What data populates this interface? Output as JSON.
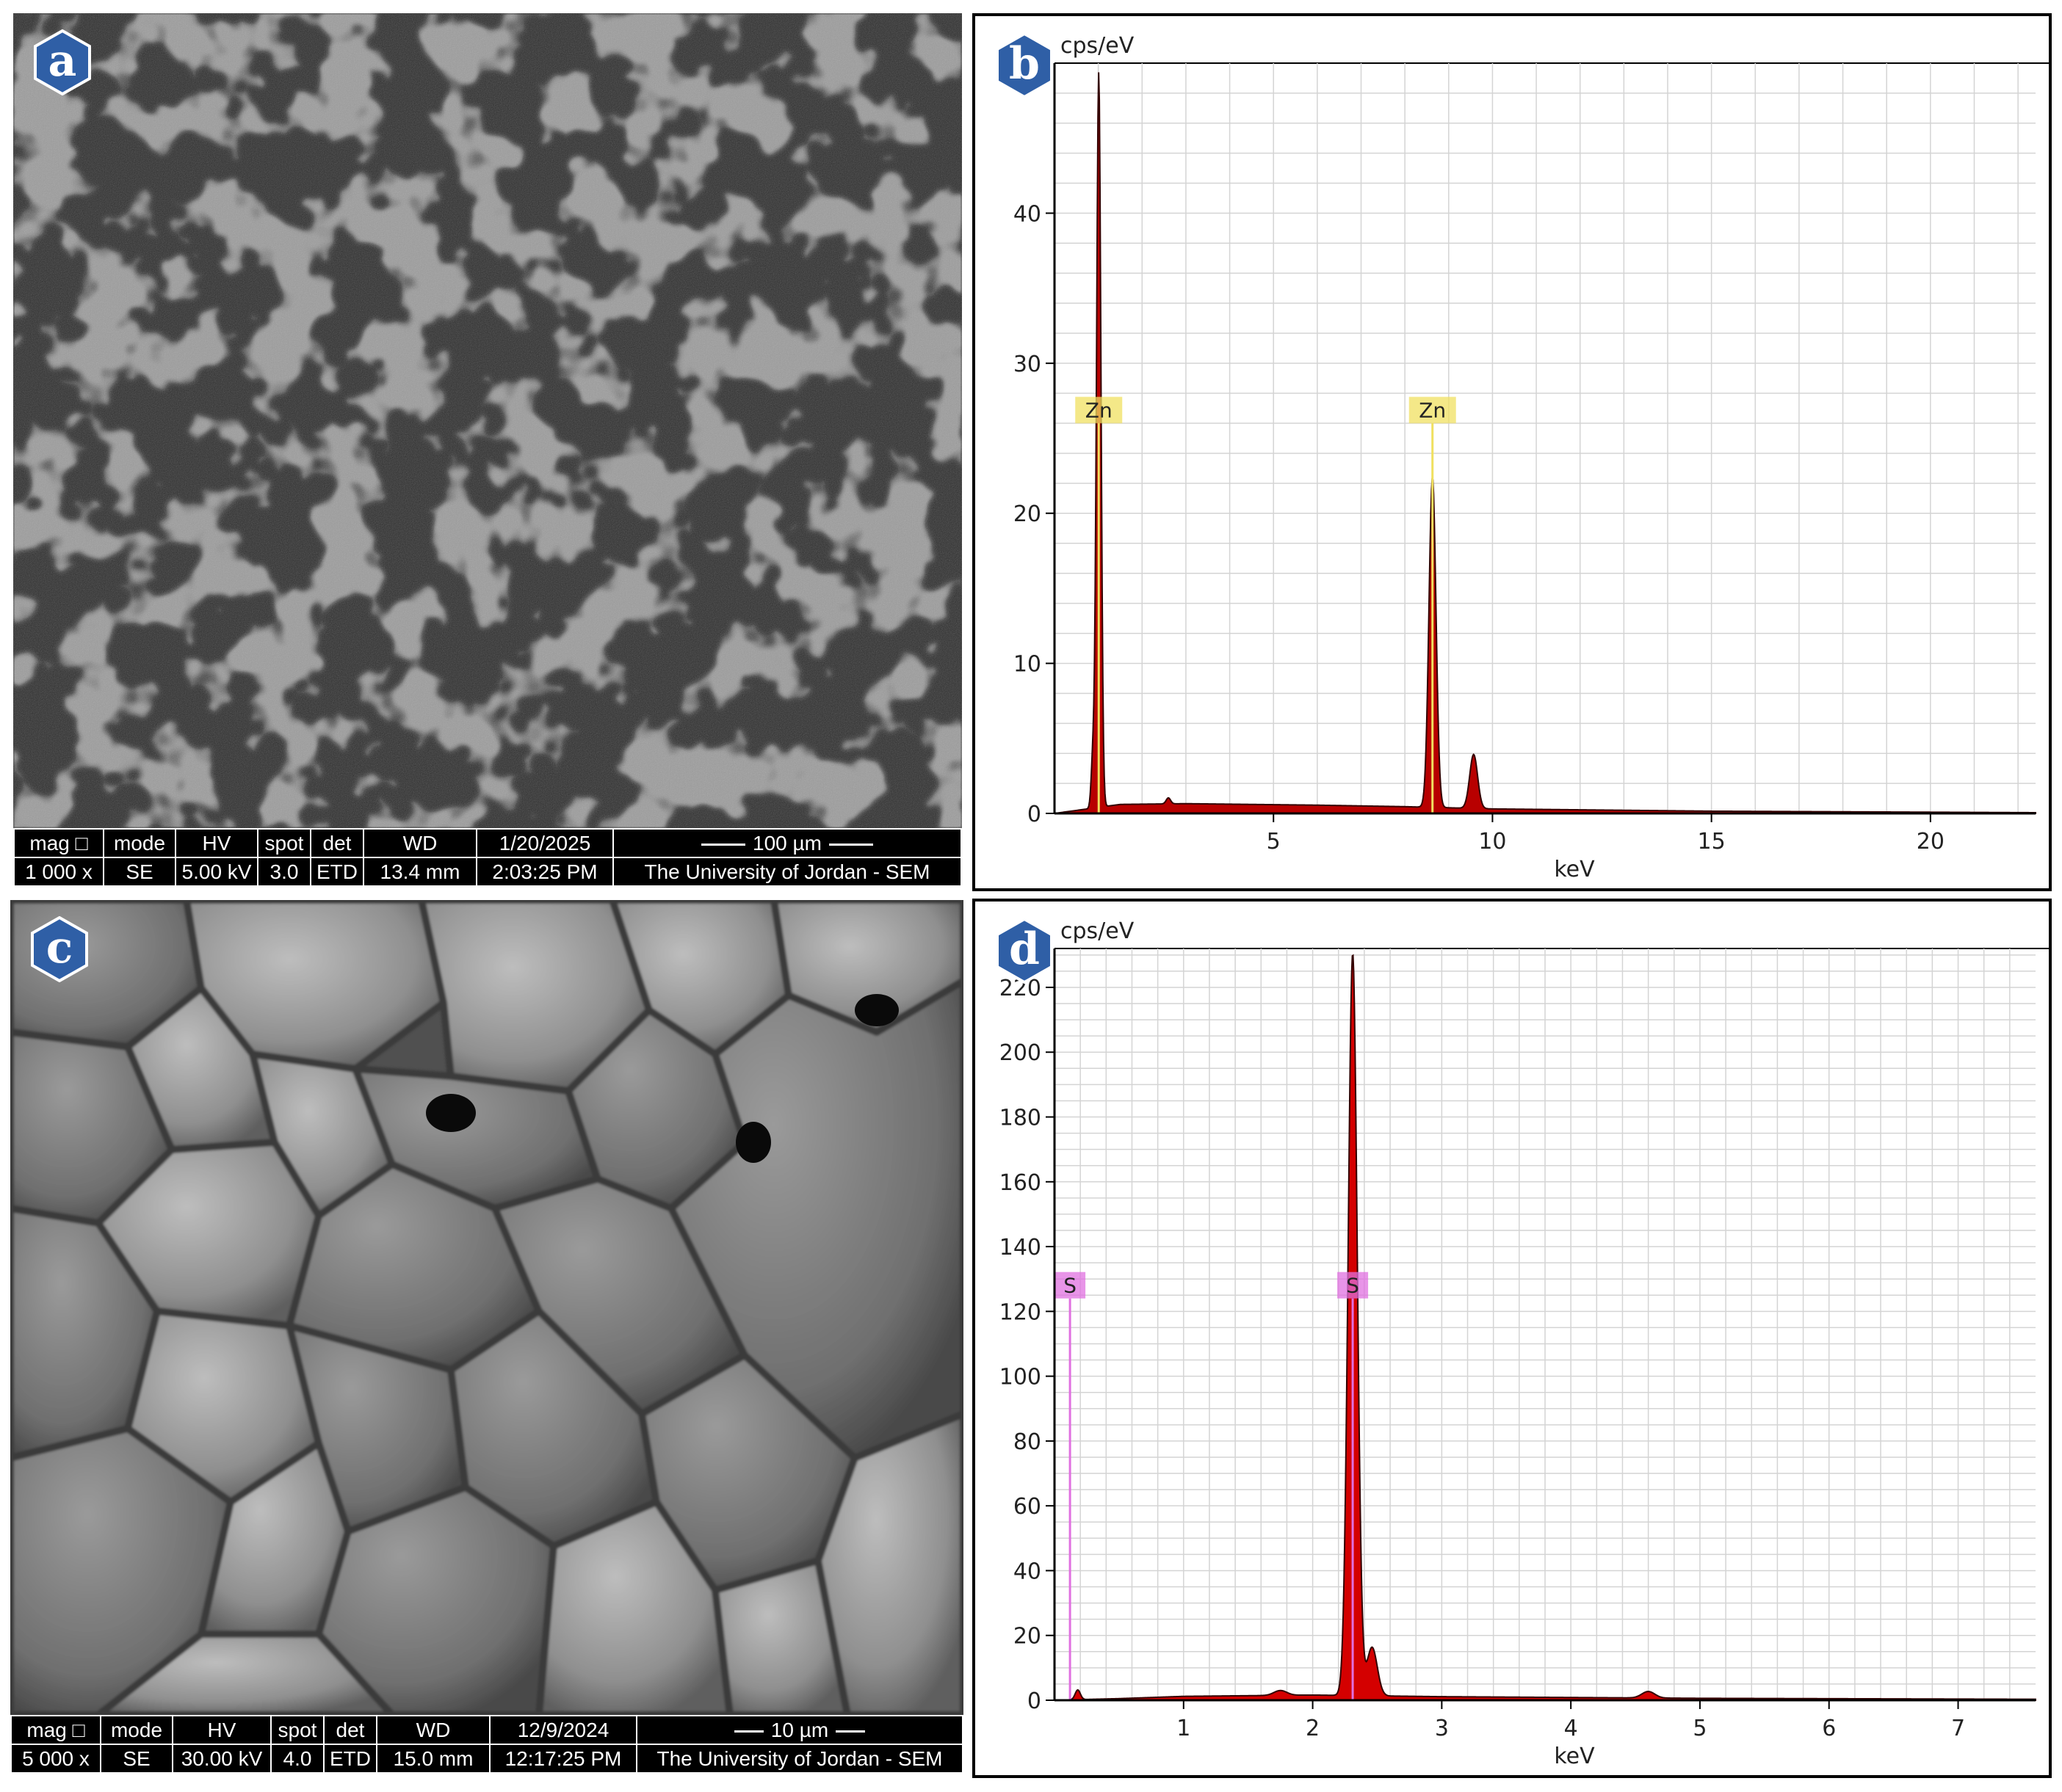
{
  "panels": {
    "a": {
      "letter": "a",
      "databar": {
        "headers": [
          "mag □",
          "mode",
          "HV",
          "spot",
          "det",
          "WD",
          "1/20/2025",
          "100 µm"
        ],
        "values": [
          "1 000 x",
          "SE",
          "5.00 kV",
          "3.0",
          "ETD",
          "13.4 mm",
          "2:03:25 PM",
          "The University of Jordan - SEM"
        ]
      }
    },
    "b": {
      "letter": "b",
      "units": "cps/eV",
      "xlabel": "keV"
    },
    "c": {
      "letter": "c",
      "databar": {
        "headers": [
          "mag □",
          "mode",
          "HV",
          "spot",
          "det",
          "WD",
          "12/9/2024",
          "10 µm"
        ],
        "values": [
          "5 000 x",
          "SE",
          "30.00 kV",
          "4.0",
          "ETD",
          "15.0 mm",
          "12:17:25 PM",
          "The University of Jordan - SEM"
        ]
      }
    },
    "d": {
      "letter": "d",
      "units": "cps/eV",
      "xlabel": "keV"
    }
  },
  "chart_data": [
    {
      "panel": "b",
      "type": "line",
      "title": "",
      "xlabel": "keV",
      "ylabel": "cps/eV",
      "xlim": [
        0,
        22.4
      ],
      "ylim": [
        0,
        50
      ],
      "xticks": [
        5,
        10,
        15,
        20
      ],
      "yticks": [
        0,
        10,
        20,
        30,
        40
      ],
      "grid": true,
      "spectrum_fill_color": "#b80000",
      "line_color": "#330000",
      "marker_color": "#f0e060",
      "peaks": [
        {
          "x": 1.01,
          "y": 49,
          "w": 0.05
        },
        {
          "x": 0.88,
          "y": 3.5,
          "w": 0.04
        },
        {
          "x": 8.63,
          "y": 22,
          "w": 0.08
        },
        {
          "x": 9.57,
          "y": 3.6,
          "w": 0.09
        },
        {
          "x": 2.6,
          "y": 0.4,
          "w": 0.05
        }
      ],
      "background": [
        {
          "x": 0,
          "y": 0
        },
        {
          "x": 0.5,
          "y": 0.2
        },
        {
          "x": 1.5,
          "y": 0.6
        },
        {
          "x": 3,
          "y": 0.65
        },
        {
          "x": 6,
          "y": 0.55
        },
        {
          "x": 8,
          "y": 0.45
        },
        {
          "x": 10,
          "y": 0.3
        },
        {
          "x": 15,
          "y": 0.15
        },
        {
          "x": 22.4,
          "y": 0.05
        }
      ],
      "markers": [
        {
          "label": "Zn",
          "x": 1.01,
          "y": 26
        },
        {
          "label": "Zn",
          "x": 8.63,
          "y": 26
        }
      ]
    },
    {
      "panel": "d",
      "type": "line",
      "title": "",
      "xlabel": "keV",
      "ylabel": "cps/eV",
      "xlim": [
        0,
        7.6
      ],
      "ylim": [
        0,
        232
      ],
      "xticks": [
        1,
        2,
        3,
        4,
        5,
        6,
        7
      ],
      "yticks": [
        0,
        20,
        40,
        60,
        80,
        100,
        120,
        140,
        160,
        180,
        200,
        220
      ],
      "grid": true,
      "spectrum_fill_color": "#d40000",
      "line_color": "#330000",
      "marker_color": "#e070e0",
      "peaks": [
        {
          "x": 2.31,
          "y": 229,
          "w": 0.035
        },
        {
          "x": 2.46,
          "y": 15,
          "w": 0.04
        },
        {
          "x": 4.6,
          "y": 2,
          "w": 0.05
        },
        {
          "x": 1.75,
          "y": 1.5,
          "w": 0.05
        },
        {
          "x": 0.18,
          "y": 3,
          "w": 0.02
        }
      ],
      "background": [
        {
          "x": 0,
          "y": 0
        },
        {
          "x": 0.5,
          "y": 0.5
        },
        {
          "x": 1,
          "y": 1.2
        },
        {
          "x": 2,
          "y": 1.6
        },
        {
          "x": 3,
          "y": 1.1
        },
        {
          "x": 5,
          "y": 0.6
        },
        {
          "x": 7.6,
          "y": 0.3
        }
      ],
      "markers": [
        {
          "label": "S",
          "x": 0.12,
          "y": 124
        },
        {
          "label": "S",
          "x": 2.31,
          "y": 124
        }
      ]
    }
  ]
}
